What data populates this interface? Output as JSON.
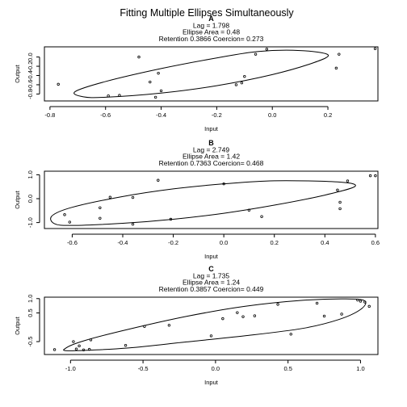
{
  "title": "Fitting Multiple Ellipses Simultaneously",
  "chart_data": [
    {
      "type": "scatter",
      "panel": "A",
      "lines": [
        "Lag = 1.798",
        "Ellipse Area = 0.48",
        "Retention 0.3866 Coercion= 0.273"
      ],
      "xlabel": "Input",
      "ylabel": "Output",
      "xlim": [
        -0.82,
        0.38
      ],
      "ylim": [
        -0.95,
        0.22
      ],
      "xticks": [
        -0.8,
        -0.6,
        -0.4,
        -0.2,
        0.0,
        0.2
      ],
      "xtick_labels": [
        "-0.8",
        "-0.6",
        "-0.4",
        "-0.2",
        "0.0",
        "0.2"
      ],
      "yticks": [
        0.0,
        -0.2,
        -0.4,
        -0.6,
        -0.8
      ],
      "ytick_labels": [
        "0.0",
        "-0.2",
        "-0.4",
        "-0.6",
        "-0.8"
      ],
      "points": [
        [
          -0.77,
          -0.59
        ],
        [
          -0.59,
          -0.84
        ],
        [
          -0.55,
          -0.83
        ],
        [
          -0.48,
          0.0
        ],
        [
          -0.44,
          -0.54
        ],
        [
          -0.42,
          -0.87
        ],
        [
          -0.41,
          -0.35
        ],
        [
          -0.4,
          -0.73
        ],
        [
          -0.13,
          -0.6
        ],
        [
          -0.11,
          -0.56
        ],
        [
          -0.1,
          -0.42
        ],
        [
          -0.06,
          0.06
        ],
        [
          -0.02,
          0.17
        ],
        [
          0.23,
          -0.24
        ],
        [
          0.24,
          0.06
        ],
        [
          0.37,
          0.18
        ]
      ],
      "ellipse": {
        "path": [
          [
            -0.6,
            -0.87
          ],
          [
            -0.4,
            -0.78
          ],
          [
            -0.2,
            -0.62
          ],
          [
            0.0,
            -0.38
          ],
          [
            0.15,
            -0.12
          ],
          [
            0.2,
            0.05
          ],
          [
            0.1,
            0.14
          ],
          [
            -0.05,
            0.12
          ],
          [
            -0.2,
            -0.02
          ],
          [
            -0.4,
            -0.25
          ],
          [
            -0.6,
            -0.53
          ],
          [
            -0.71,
            -0.75
          ],
          [
            -0.68,
            -0.86
          ]
        ]
      }
    },
    {
      "type": "scatter",
      "panel": "B",
      "lines": [
        "Lag = 2.749",
        "Ellipse Area = 1.42",
        "Retention 0.7363 Coercion= 0.468"
      ],
      "xlabel": "Input",
      "ylabel": "Output",
      "xlim": [
        -0.71,
        0.61
      ],
      "ylim": [
        -1.25,
        1.15
      ],
      "xticks": [
        -0.6,
        -0.4,
        -0.2,
        0.0,
        0.2,
        0.4,
        0.6
      ],
      "xtick_labels": [
        "-0.6",
        "-0.4",
        "-0.2",
        "0.0",
        "0.2",
        "0.4",
        "0.6"
      ],
      "yticks": [
        1.0,
        0.0,
        -1.0
      ],
      "ytick_labels": [
        "1.0",
        "0.0",
        "-1.0"
      ],
      "points": [
        [
          -0.63,
          -0.67
        ],
        [
          -0.61,
          -0.98
        ],
        [
          -0.49,
          -0.38
        ],
        [
          -0.49,
          -0.82
        ],
        [
          -0.45,
          0.06
        ],
        [
          -0.36,
          0.05
        ],
        [
          -0.36,
          -1.07
        ],
        [
          -0.26,
          0.77
        ],
        [
          -0.21,
          -0.86
        ],
        [
          0.0,
          0.62
        ],
        [
          0.1,
          -0.48
        ],
        [
          0.15,
          -0.75
        ],
        [
          0.45,
          0.36
        ],
        [
          0.46,
          -0.15
        ],
        [
          0.46,
          -0.42
        ],
        [
          0.49,
          0.74
        ],
        [
          0.58,
          0.96
        ],
        [
          0.6,
          0.96
        ]
      ],
      "ellipse": {
        "path": [
          [
            -0.6,
            -1.12
          ],
          [
            -0.4,
            -1.03
          ],
          [
            -0.2,
            -0.86
          ],
          [
            0.0,
            -0.61
          ],
          [
            0.2,
            -0.27
          ],
          [
            0.4,
            0.15
          ],
          [
            0.52,
            0.52
          ],
          [
            0.45,
            0.7
          ],
          [
            0.2,
            0.75
          ],
          [
            0.0,
            0.62
          ],
          [
            -0.2,
            0.41
          ],
          [
            -0.4,
            0.09
          ],
          [
            -0.6,
            -0.36
          ],
          [
            -0.68,
            -0.72
          ],
          [
            -0.67,
            -1.05
          ]
        ]
      }
    },
    {
      "type": "scatter",
      "panel": "C",
      "lines": [
        "Lag = 1.735",
        "Ellipse Area = 1.24",
        "Retention 0.3857 Coercion= 0.449"
      ],
      "xlabel": "Input",
      "ylabel": "Output",
      "xlim": [
        -1.18,
        1.12
      ],
      "ylim": [
        -0.95,
        1.05
      ],
      "xticks": [
        -1.0,
        -0.5,
        0.0,
        0.5,
        1.0
      ],
      "xtick_labels": [
        "-1.0",
        "-0.5",
        "0.0",
        "0.5",
        "1.0"
      ],
      "yticks": [
        1.0,
        0.5,
        -0.5
      ],
      "ytick_labels": [
        "1.0",
        "0.5",
        "-0.5"
      ],
      "points": [
        [
          -1.11,
          -0.78
        ],
        [
          -0.98,
          -0.5
        ],
        [
          -0.96,
          -0.76
        ],
        [
          -0.94,
          -0.65
        ],
        [
          -0.91,
          -0.79
        ],
        [
          -0.87,
          -0.77
        ],
        [
          -0.86,
          -0.44
        ],
        [
          -0.62,
          -0.63
        ],
        [
          -0.49,
          0.03
        ],
        [
          -0.32,
          0.07
        ],
        [
          -0.03,
          -0.3
        ],
        [
          0.05,
          0.3
        ],
        [
          0.15,
          0.51
        ],
        [
          0.19,
          0.37
        ],
        [
          0.27,
          0.4
        ],
        [
          0.43,
          0.8
        ],
        [
          0.52,
          -0.24
        ],
        [
          0.7,
          0.84
        ],
        [
          0.75,
          0.39
        ],
        [
          0.87,
          0.46
        ],
        [
          0.98,
          0.95
        ],
        [
          1.0,
          0.91
        ],
        [
          1.03,
          0.88
        ],
        [
          1.06,
          0.73
        ]
      ],
      "ellipse": {
        "path": [
          [
            -1.0,
            -0.82
          ],
          [
            -0.6,
            -0.72
          ],
          [
            -0.2,
            -0.51
          ],
          [
            0.2,
            -0.3
          ],
          [
            0.6,
            -0.04
          ],
          [
            0.85,
            0.27
          ],
          [
            1.0,
            0.62
          ],
          [
            1.03,
            0.92
          ],
          [
            0.9,
            0.99
          ],
          [
            0.6,
            0.94
          ],
          [
            0.2,
            0.73
          ],
          [
            -0.2,
            0.38
          ],
          [
            -0.6,
            -0.07
          ],
          [
            -0.9,
            -0.46
          ],
          [
            -1.03,
            -0.72
          ]
        ]
      }
    }
  ]
}
